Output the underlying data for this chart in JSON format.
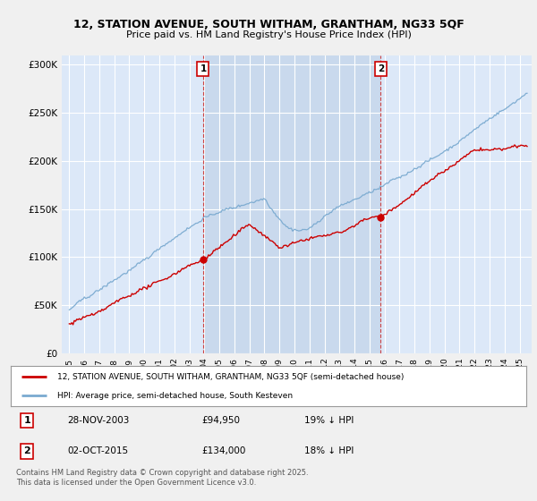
{
  "title_line1": "12, STATION AVENUE, SOUTH WITHAM, GRANTHAM, NG33 5QF",
  "title_line2": "Price paid vs. HM Land Registry's House Price Index (HPI)",
  "background_color": "#f0f0f0",
  "plot_bg_color": "#dce8f8",
  "plot_bg_color2": "#c8d8f0",
  "grid_color": "#ffffff",
  "red_color": "#cc0000",
  "blue_color": "#7aaad0",
  "purchase1_x": 2003.917,
  "purchase1_y": 94950,
  "purchase2_x": 2015.75,
  "purchase2_y": 134000,
  "xmin": 1994.5,
  "xmax": 2025.8,
  "ymin": 0,
  "ymax": 310000,
  "yticks": [
    0,
    50000,
    100000,
    150000,
    200000,
    250000,
    300000
  ],
  "ytick_labels": [
    "£0",
    "£50K",
    "£100K",
    "£150K",
    "£200K",
    "£250K",
    "£300K"
  ],
  "xticks": [
    1995,
    1996,
    1997,
    1998,
    1999,
    2000,
    2001,
    2002,
    2003,
    2004,
    2005,
    2006,
    2007,
    2008,
    2009,
    2010,
    2011,
    2012,
    2013,
    2014,
    2015,
    2016,
    2017,
    2018,
    2019,
    2020,
    2021,
    2022,
    2023,
    2024,
    2025
  ],
  "legend_entry1": "12, STATION AVENUE, SOUTH WITHAM, GRANTHAM, NG33 5QF (semi-detached house)",
  "legend_entry2": "HPI: Average price, semi-detached house, South Kesteven",
  "footer1": "Contains HM Land Registry data © Crown copyright and database right 2025.",
  "footer2": "This data is licensed under the Open Government Licence v3.0.",
  "table_row1": [
    "1",
    "28-NOV-2003",
    "£94,950",
    "19% ↓ HPI"
  ],
  "table_row2": [
    "2",
    "02-OCT-2015",
    "£134,000",
    "18% ↓ HPI"
  ]
}
